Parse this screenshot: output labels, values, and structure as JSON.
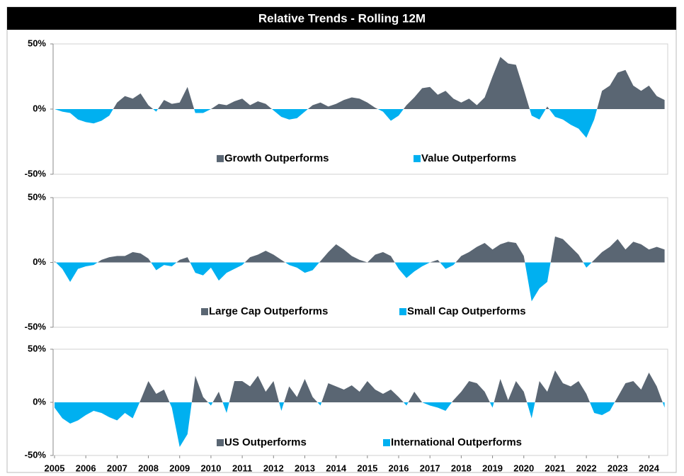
{
  "title": "Relative Trends - Rolling 12M",
  "chart_data": [
    {
      "type": "area",
      "legend": [
        {
          "name": "Growth Outperforms",
          "color": "#5a6673"
        },
        {
          "name": "Value Outperforms",
          "color": "#00b0f0"
        }
      ],
      "x": [
        2005,
        2005.25,
        2005.5,
        2005.75,
        2006,
        2006.25,
        2006.5,
        2006.75,
        2007,
        2007.25,
        2007.5,
        2007.75,
        2008,
        2008.25,
        2008.5,
        2008.75,
        2009,
        2009.25,
        2009.5,
        2009.75,
        2010,
        2010.25,
        2010.5,
        2010.75,
        2011,
        2011.25,
        2011.5,
        2011.75,
        2012,
        2012.25,
        2012.5,
        2012.75,
        2013,
        2013.25,
        2013.5,
        2013.75,
        2014,
        2014.25,
        2014.5,
        2014.75,
        2015,
        2015.25,
        2015.5,
        2015.75,
        2016,
        2016.25,
        2016.5,
        2016.75,
        2017,
        2017.25,
        2017.5,
        2017.75,
        2018,
        2018.25,
        2018.5,
        2018.75,
        2019,
        2019.25,
        2019.5,
        2019.75,
        2020,
        2020.25,
        2020.5,
        2020.75,
        2021,
        2021.25,
        2021.5,
        2021.75,
        2022,
        2022.25,
        2022.5,
        2022.75,
        2023,
        2023.25,
        2023.5,
        2023.75,
        2024,
        2024.25,
        2024.5
      ],
      "values": [
        0,
        -2,
        -3,
        -8,
        -10,
        -11,
        -9,
        -5,
        5,
        10,
        8,
        12,
        3,
        -2,
        7,
        4,
        5,
        17,
        -3,
        -3,
        0,
        4,
        3,
        6,
        8,
        3,
        6,
        4,
        -1,
        -6,
        -8,
        -7,
        -2,
        3,
        5,
        2,
        4,
        7,
        9,
        8,
        5,
        1,
        -2,
        -9,
        -5,
        3,
        9,
        16,
        17,
        11,
        14,
        8,
        5,
        8,
        3,
        9,
        25,
        40,
        35,
        34,
        15,
        -5,
        -8,
        2,
        -6,
        -8,
        -12,
        -15,
        -22,
        -8,
        14,
        18,
        28,
        30,
        18,
        14,
        18,
        10,
        7
      ],
      "xlim": [
        2005,
        2024.6
      ],
      "ylim": [
        -50,
        50
      ],
      "yticks": [
        {
          "value": 50,
          "label": "50%"
        },
        {
          "value": 0,
          "label": "0%"
        },
        {
          "value": -50,
          "label": "-50%"
        }
      ]
    },
    {
      "type": "area",
      "legend": [
        {
          "name": "Large Cap Outperforms",
          "color": "#5a6673"
        },
        {
          "name": "Small Cap Outperforms",
          "color": "#00b0f0"
        }
      ],
      "x": [
        2005,
        2005.25,
        2005.5,
        2005.75,
        2006,
        2006.25,
        2006.5,
        2006.75,
        2007,
        2007.25,
        2007.5,
        2007.75,
        2008,
        2008.25,
        2008.5,
        2008.75,
        2009,
        2009.25,
        2009.5,
        2009.75,
        2010,
        2010.25,
        2010.5,
        2010.75,
        2011,
        2011.25,
        2011.5,
        2011.75,
        2012,
        2012.25,
        2012.5,
        2012.75,
        2013,
        2013.25,
        2013.5,
        2013.75,
        2014,
        2014.25,
        2014.5,
        2014.75,
        2015,
        2015.25,
        2015.5,
        2015.75,
        2016,
        2016.25,
        2016.5,
        2016.75,
        2017,
        2017.25,
        2017.5,
        2017.75,
        2018,
        2018.25,
        2018.5,
        2018.75,
        2019,
        2019.25,
        2019.5,
        2019.75,
        2020,
        2020.25,
        2020.5,
        2020.75,
        2021,
        2021.25,
        2021.5,
        2021.75,
        2022,
        2022.25,
        2022.5,
        2022.75,
        2023,
        2023.25,
        2023.5,
        2023.75,
        2024,
        2024.25,
        2024.5
      ],
      "values": [
        1,
        -5,
        -15,
        -5,
        -3,
        -2,
        2,
        4,
        5,
        5,
        8,
        7,
        3,
        -6,
        -2,
        -3,
        2,
        4,
        -8,
        -10,
        -4,
        -14,
        -8,
        -5,
        -2,
        4,
        6,
        9,
        6,
        2,
        -2,
        -4,
        -8,
        -6,
        1,
        8,
        14,
        10,
        5,
        2,
        0,
        6,
        8,
        5,
        -5,
        -12,
        -7,
        -3,
        0,
        2,
        -5,
        -2,
        5,
        8,
        12,
        15,
        10,
        14,
        16,
        15,
        5,
        -30,
        -20,
        -15,
        20,
        18,
        12,
        6,
        -4,
        2,
        8,
        12,
        18,
        10,
        16,
        14,
        10,
        12,
        10
      ],
      "xlim": [
        2005,
        2024.6
      ],
      "ylim": [
        -50,
        50
      ],
      "yticks": [
        {
          "value": 50,
          "label": "50%"
        },
        {
          "value": 0,
          "label": "0%"
        },
        {
          "value": -50,
          "label": "-50%"
        }
      ]
    },
    {
      "type": "area",
      "legend": [
        {
          "name": "US Outperforms",
          "color": "#5a6673"
        },
        {
          "name": "International Outperforms",
          "color": "#00b0f0"
        }
      ],
      "x": [
        2005,
        2005.25,
        2005.5,
        2005.75,
        2006,
        2006.25,
        2006.5,
        2006.75,
        2007,
        2007.25,
        2007.5,
        2007.75,
        2008,
        2008.25,
        2008.5,
        2008.75,
        2009,
        2009.25,
        2009.5,
        2009.75,
        2010,
        2010.25,
        2010.5,
        2010.75,
        2011,
        2011.25,
        2011.5,
        2011.75,
        2012,
        2012.25,
        2012.5,
        2012.75,
        2013,
        2013.25,
        2013.5,
        2013.75,
        2014,
        2014.25,
        2014.5,
        2014.75,
        2015,
        2015.25,
        2015.5,
        2015.75,
        2016,
        2016.25,
        2016.5,
        2016.75,
        2017,
        2017.25,
        2017.5,
        2017.75,
        2018,
        2018.25,
        2018.5,
        2018.75,
        2019,
        2019.25,
        2019.5,
        2019.75,
        2020,
        2020.25,
        2020.5,
        2020.75,
        2021,
        2021.25,
        2021.5,
        2021.75,
        2022,
        2022.25,
        2022.5,
        2022.75,
        2023,
        2023.25,
        2023.5,
        2023.75,
        2024,
        2024.25,
        2024.5
      ],
      "values": [
        -5,
        -15,
        -20,
        -17,
        -12,
        -8,
        -10,
        -14,
        -17,
        -10,
        -15,
        2,
        20,
        8,
        12,
        -5,
        -42,
        -30,
        25,
        5,
        -3,
        10,
        -10,
        20,
        20,
        15,
        25,
        10,
        20,
        -8,
        15,
        5,
        22,
        5,
        -3,
        18,
        15,
        12,
        16,
        10,
        20,
        12,
        8,
        12,
        5,
        -3,
        10,
        0,
        -3,
        -5,
        -8,
        2,
        10,
        20,
        18,
        10,
        -5,
        22,
        2,
        20,
        10,
        -15,
        20,
        10,
        30,
        18,
        15,
        20,
        8,
        -10,
        -12,
        -8,
        5,
        18,
        20,
        12,
        28,
        15,
        -5
      ],
      "xlim": [
        2005,
        2024.6
      ],
      "ylim": [
        -50,
        50
      ],
      "yticks": [
        {
          "value": 50,
          "label": "50%"
        },
        {
          "value": 0,
          "label": "0%"
        },
        {
          "value": -50,
          "label": "-50%"
        }
      ],
      "xticks": [
        2005,
        2006,
        2007,
        2008,
        2009,
        2010,
        2011,
        2012,
        2013,
        2014,
        2015,
        2016,
        2017,
        2018,
        2019,
        2020,
        2021,
        2022,
        2023,
        2024
      ]
    }
  ]
}
